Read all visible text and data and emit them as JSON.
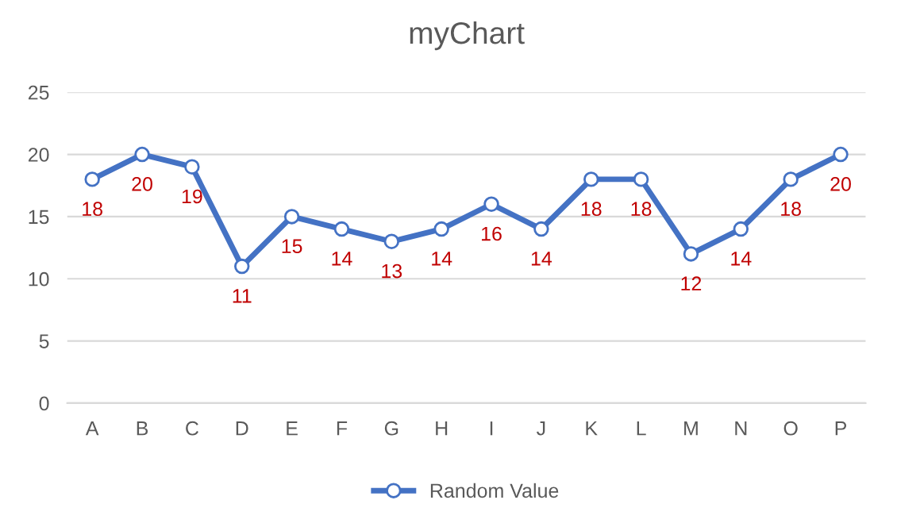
{
  "chart_data": {
    "type": "line",
    "title": "myChart",
    "categories": [
      "A",
      "B",
      "C",
      "D",
      "E",
      "F",
      "G",
      "H",
      "I",
      "J",
      "K",
      "L",
      "M",
      "N",
      "O",
      "P"
    ],
    "series": [
      {
        "name": "Random Value",
        "color": "#4472c4",
        "values": [
          18,
          20,
          19,
          11,
          15,
          14,
          13,
          14,
          16,
          14,
          18,
          18,
          12,
          14,
          18,
          20
        ]
      }
    ],
    "ylim": [
      0,
      25
    ],
    "yticks": [
      0,
      5,
      10,
      15,
      20,
      25
    ],
    "grid": "y",
    "legend": "bottom",
    "marker": "circle",
    "line_style": "solid",
    "data_labels": true
  }
}
